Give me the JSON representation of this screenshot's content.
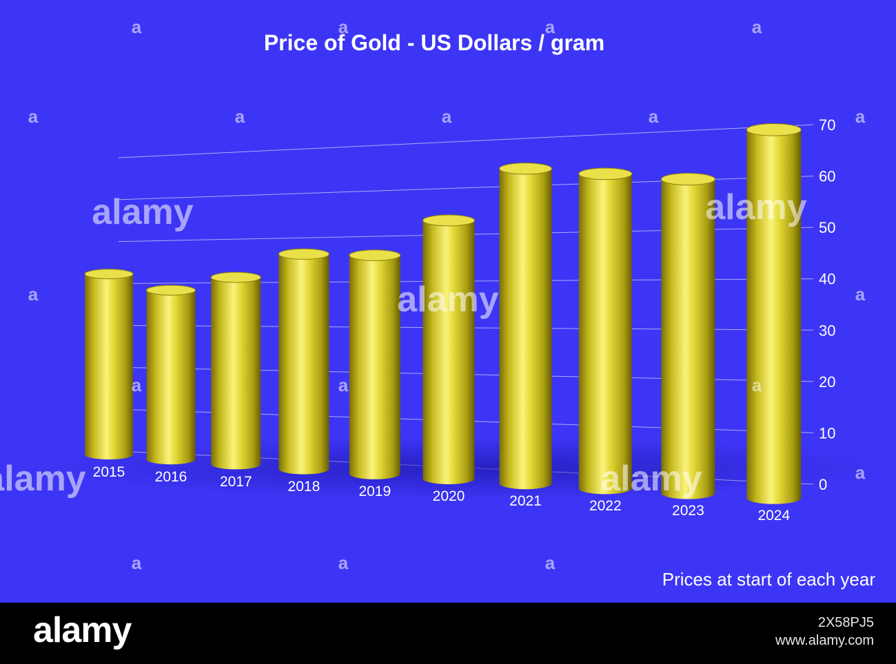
{
  "chart_data": {
    "type": "bar",
    "title": "Price of Gold - US Dollars / gram",
    "categories": [
      "2015",
      "2016",
      "2017",
      "2018",
      "2019",
      "2020",
      "2021",
      "2022",
      "2023",
      "2024"
    ],
    "values": [
      38,
      35,
      38,
      43,
      43,
      50,
      60,
      59,
      58,
      67
    ],
    "y_ticks": [
      "0",
      "10",
      "20",
      "30",
      "40",
      "50",
      "60",
      "70"
    ],
    "ylim": [
      0,
      70
    ],
    "xlabel": "",
    "ylabel": "",
    "grid": true,
    "footnote": "Prices at start of each year",
    "colors": {
      "background": "#3d35f5",
      "bar": "#d8cf2a",
      "gridline": "#c9c9ff",
      "text": "#ffffff"
    }
  },
  "watermark": {
    "logo": "alamy",
    "image_id": "2X58PJ5",
    "site": "www.alamy.com"
  }
}
